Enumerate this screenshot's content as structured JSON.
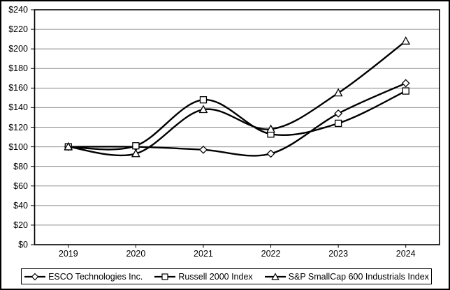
{
  "chart_data": {
    "type": "line",
    "smoothed": true,
    "title": "",
    "x_categories": [
      "2019",
      "2020",
      "2021",
      "2022",
      "2023",
      "2024"
    ],
    "series": [
      {
        "name": "ESCO Technologies Inc.",
        "marker": "diamond",
        "values": [
          100,
          100,
          97,
          93,
          134,
          165
        ]
      },
      {
        "name": "Russell 2000 Index",
        "marker": "square",
        "values": [
          100,
          101,
          148,
          113,
          124,
          157
        ]
      },
      {
        "name": "S&P SmallCap 600 Industrials Index",
        "marker": "triangle",
        "values": [
          100,
          93,
          138,
          118,
          155,
          208
        ]
      }
    ],
    "ylim": [
      0,
      240
    ],
    "ytick_step": 20,
    "ytick_labels": [
      "$0",
      "$20",
      "$40",
      "$60",
      "$80",
      "$100",
      "$120",
      "$140",
      "$160",
      "$180",
      "$200",
      "$220",
      "$240"
    ],
    "xlabel": "",
    "ylabel": "",
    "grid": true,
    "legend_position": "bottom",
    "line_color": "#000000",
    "marker_fill": "#ffffff",
    "gridline_color": "#8c8c8c",
    "axis_color": "#000000",
    "background": "#ffffff"
  }
}
